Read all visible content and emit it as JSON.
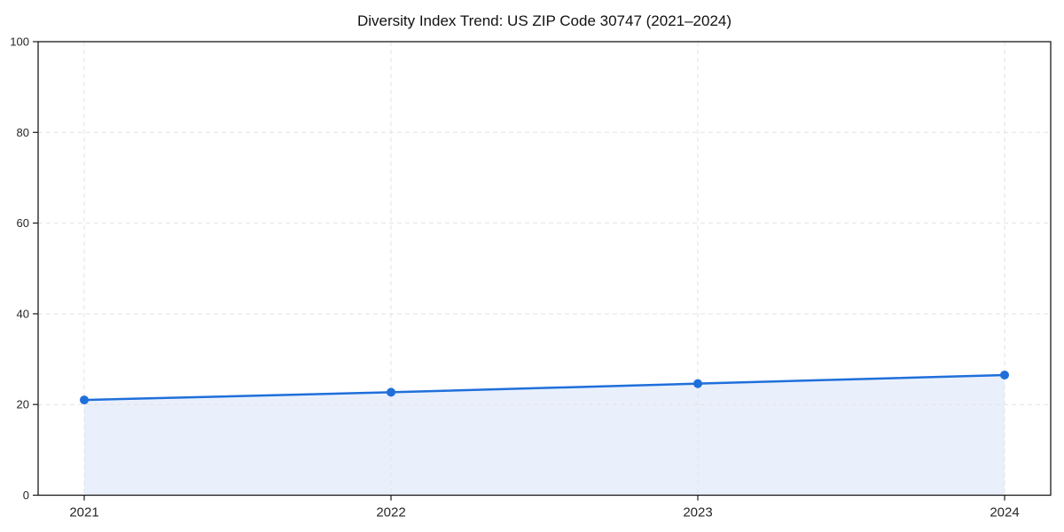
{
  "page": {
    "background": "#ffffff"
  },
  "chart_data": {
    "type": "line",
    "style": "area-line-with-markers",
    "title": "Diversity Index Trend: US ZIP Code 30747 (2021–2024)",
    "categories": [
      "2021",
      "2022",
      "2023",
      "2024"
    ],
    "series": [
      {
        "name": "Diversity Index",
        "values": [
          21.0,
          22.7,
          24.6,
          26.5
        ]
      }
    ],
    "xlabel": "",
    "ylabel": "",
    "ylim": [
      0,
      100
    ],
    "yticks": [
      0,
      20,
      40,
      60,
      80,
      100
    ],
    "grid": "dashed",
    "grid_axes": "both",
    "legend": "none",
    "colors": {
      "line": "#1f6fdb",
      "marker": "#1f6fdb",
      "area_fill": "#e9f0fc",
      "grid": "#e3e3e3",
      "axis": "#1a1a1a",
      "tick_label": "#262626",
      "title": "#111111",
      "background": "#ffffff"
    }
  }
}
